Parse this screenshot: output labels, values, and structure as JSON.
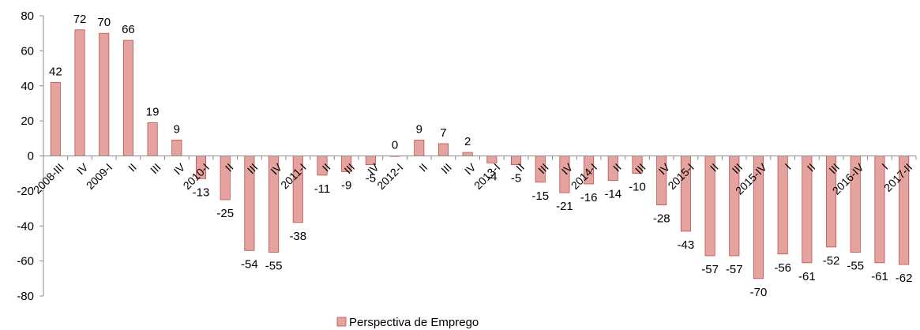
{
  "chart_data": {
    "type": "bar",
    "categories": [
      "2008-III",
      "IV",
      "2009-I",
      "II",
      "III",
      "IV",
      "2010-I",
      "II",
      "III",
      "IV",
      "2011-I",
      "II",
      "III",
      "IV",
      "2012-I",
      "II",
      "III",
      "IV",
      "2013-I",
      "II",
      "III",
      "IV",
      "2014-I",
      "II",
      "III",
      "IV",
      "2015-I",
      "II",
      "III",
      "2015-IV",
      "I",
      "II",
      "III",
      "2016-IV",
      "I",
      "2017-II"
    ],
    "series": [
      {
        "name": "Perspectiva de Emprego",
        "values": [
          42,
          72,
          70,
          66,
          19,
          9,
          -13,
          -25,
          -54,
          -55,
          -38,
          -11,
          -9,
          -5,
          0,
          9,
          7,
          2,
          -4,
          -5,
          -15,
          -21,
          -16,
          -14,
          -10,
          -28,
          -43,
          -57,
          -57,
          -70,
          -56,
          -61,
          -52,
          -55,
          -61,
          -62
        ]
      }
    ],
    "ylim": [
      -80,
      80
    ],
    "yticks": [
      -80,
      -60,
      -40,
      -20,
      0,
      20,
      40,
      60,
      80
    ],
    "title": "",
    "xlabel": "",
    "ylabel": "",
    "grid": false,
    "legend_position": "bottom",
    "colors": {
      "bar_fill": "#e5a3a0",
      "bar_stroke": "#c0504d",
      "axis": "#8c8c8c"
    }
  }
}
